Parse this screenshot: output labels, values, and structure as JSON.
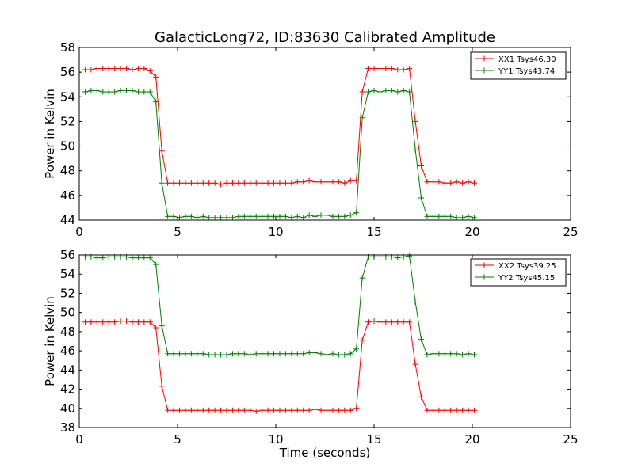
{
  "figure": {
    "title": "GalacticLong72, ID:83630 Calibrated Amplitude"
  },
  "chart_data": [
    {
      "type": "line",
      "title": "GalacticLong72, ID:83630 Calibrated Amplitude",
      "xlabel": "",
      "ylabel": "Power in Kelvin",
      "xlim": [
        0,
        25
      ],
      "ylim": [
        44,
        58
      ],
      "xticks": [
        "0",
        "5",
        "10",
        "15",
        "20",
        "25"
      ],
      "yticks": [
        "44",
        "46",
        "48",
        "50",
        "52",
        "54",
        "56",
        "58"
      ],
      "grid": false,
      "legend_position": "top-right",
      "x": [
        0.3,
        0.6,
        0.9,
        1.2,
        1.5,
        1.8,
        2.1,
        2.4,
        2.7,
        3.0,
        3.3,
        3.6,
        3.9,
        4.2,
        4.5,
        4.8,
        5.1,
        5.4,
        5.7,
        6.0,
        6.3,
        6.6,
        6.9,
        7.2,
        7.5,
        7.8,
        8.1,
        8.4,
        8.7,
        9.0,
        9.3,
        9.6,
        9.9,
        10.2,
        10.5,
        10.8,
        11.1,
        11.4,
        11.7,
        12.0,
        12.3,
        12.6,
        12.9,
        13.2,
        13.5,
        13.8,
        14.1,
        14.4,
        14.7,
        15.0,
        15.3,
        15.6,
        15.9,
        16.2,
        16.5,
        16.8,
        17.1,
        17.4,
        17.7,
        18.0,
        18.3,
        18.6,
        18.9,
        19.2,
        19.5,
        19.8,
        20.1
      ],
      "series": [
        {
          "name": "XX1 Tsys46.30",
          "color": "#ff0000",
          "values": [
            56.2,
            56.2,
            56.3,
            56.3,
            56.3,
            56.3,
            56.3,
            56.3,
            56.2,
            56.3,
            56.3,
            56.1,
            55.6,
            49.6,
            47.0,
            47.0,
            47.0,
            47.0,
            47.0,
            47.0,
            47.0,
            47.0,
            47.0,
            46.9,
            47.0,
            47.0,
            47.0,
            47.0,
            47.0,
            47.0,
            47.0,
            47.0,
            47.0,
            47.0,
            47.0,
            47.0,
            47.1,
            47.1,
            47.2,
            47.1,
            47.1,
            47.1,
            47.1,
            47.1,
            47.0,
            47.2,
            47.2,
            54.4,
            56.3,
            56.3,
            56.3,
            56.3,
            56.3,
            56.2,
            56.2,
            56.3,
            52.0,
            48.4,
            47.1,
            47.1,
            47.1,
            47.0,
            47.0,
            47.1,
            47.0,
            47.1,
            47.0
          ]
        },
        {
          "name": "YY1 Tsys43.74",
          "color": "#008000",
          "values": [
            54.4,
            54.5,
            54.5,
            54.4,
            54.4,
            54.4,
            54.5,
            54.5,
            54.5,
            54.4,
            54.4,
            54.4,
            53.6,
            47.0,
            44.3,
            44.3,
            44.2,
            44.3,
            44.3,
            44.2,
            44.3,
            44.2,
            44.2,
            44.2,
            44.2,
            44.2,
            44.3,
            44.3,
            44.3,
            44.3,
            44.3,
            44.3,
            44.3,
            44.3,
            44.3,
            44.2,
            44.3,
            44.2,
            44.4,
            44.3,
            44.4,
            44.4,
            44.3,
            44.3,
            44.3,
            44.4,
            44.6,
            52.3,
            54.4,
            54.5,
            54.4,
            54.5,
            54.5,
            54.4,
            54.5,
            54.4,
            49.7,
            45.8,
            44.3,
            44.3,
            44.3,
            44.3,
            44.3,
            44.2,
            44.2,
            44.3,
            44.2
          ]
        }
      ]
    },
    {
      "type": "line",
      "title": "",
      "xlabel": "Time (seconds)",
      "ylabel": "Power in Kelvin",
      "xlim": [
        0,
        25
      ],
      "ylim": [
        38,
        56
      ],
      "xticks": [
        "0",
        "5",
        "10",
        "15",
        "20",
        "25"
      ],
      "yticks": [
        "38",
        "40",
        "42",
        "44",
        "46",
        "48",
        "50",
        "52",
        "54",
        "56"
      ],
      "grid": false,
      "legend_position": "top-right",
      "x": [
        0.3,
        0.6,
        0.9,
        1.2,
        1.5,
        1.8,
        2.1,
        2.4,
        2.7,
        3.0,
        3.3,
        3.6,
        3.9,
        4.2,
        4.5,
        4.8,
        5.1,
        5.4,
        5.7,
        6.0,
        6.3,
        6.6,
        6.9,
        7.2,
        7.5,
        7.8,
        8.1,
        8.4,
        8.7,
        9.0,
        9.3,
        9.6,
        9.9,
        10.2,
        10.5,
        10.8,
        11.1,
        11.4,
        11.7,
        12.0,
        12.3,
        12.6,
        12.9,
        13.2,
        13.5,
        13.8,
        14.1,
        14.4,
        14.7,
        15.0,
        15.3,
        15.6,
        15.9,
        16.2,
        16.5,
        16.8,
        17.1,
        17.4,
        17.7,
        18.0,
        18.3,
        18.6,
        18.9,
        19.2,
        19.5,
        19.8,
        20.1
      ],
      "series": [
        {
          "name": "XX2 Tsys39.25",
          "color": "#ff0000",
          "values": [
            49.0,
            49.0,
            49.0,
            49.0,
            49.0,
            49.0,
            49.1,
            49.1,
            49.0,
            49.0,
            49.0,
            49.0,
            48.4,
            42.3,
            39.8,
            39.8,
            39.8,
            39.8,
            39.8,
            39.8,
            39.8,
            39.8,
            39.8,
            39.8,
            39.8,
            39.8,
            39.8,
            39.8,
            39.8,
            39.7,
            39.8,
            39.8,
            39.8,
            39.8,
            39.8,
            39.8,
            39.8,
            39.8,
            39.8,
            39.9,
            39.8,
            39.8,
            39.8,
            39.8,
            39.8,
            39.8,
            40.0,
            47.1,
            49.0,
            49.1,
            49.0,
            49.0,
            49.0,
            49.0,
            49.0,
            49.0,
            44.6,
            41.2,
            39.8,
            39.8,
            39.8,
            39.8,
            39.8,
            39.8,
            39.8,
            39.8,
            39.8
          ]
        },
        {
          "name": "YY2 Tsys45.15",
          "color": "#008000",
          "values": [
            55.8,
            55.8,
            55.7,
            55.7,
            55.8,
            55.8,
            55.8,
            55.8,
            55.7,
            55.7,
            55.7,
            55.7,
            55.0,
            48.6,
            45.7,
            45.7,
            45.7,
            45.7,
            45.7,
            45.7,
            45.7,
            45.6,
            45.6,
            45.6,
            45.6,
            45.7,
            45.7,
            45.7,
            45.6,
            45.7,
            45.7,
            45.7,
            45.7,
            45.7,
            45.7,
            45.7,
            45.7,
            45.7,
            45.8,
            45.8,
            45.7,
            45.6,
            45.7,
            45.6,
            45.6,
            45.7,
            46.2,
            53.6,
            55.8,
            55.8,
            55.8,
            55.8,
            55.8,
            55.7,
            55.8,
            55.9,
            51.1,
            47.2,
            45.6,
            45.7,
            45.7,
            45.7,
            45.7,
            45.7,
            45.6,
            45.7,
            45.6
          ]
        }
      ]
    }
  ]
}
